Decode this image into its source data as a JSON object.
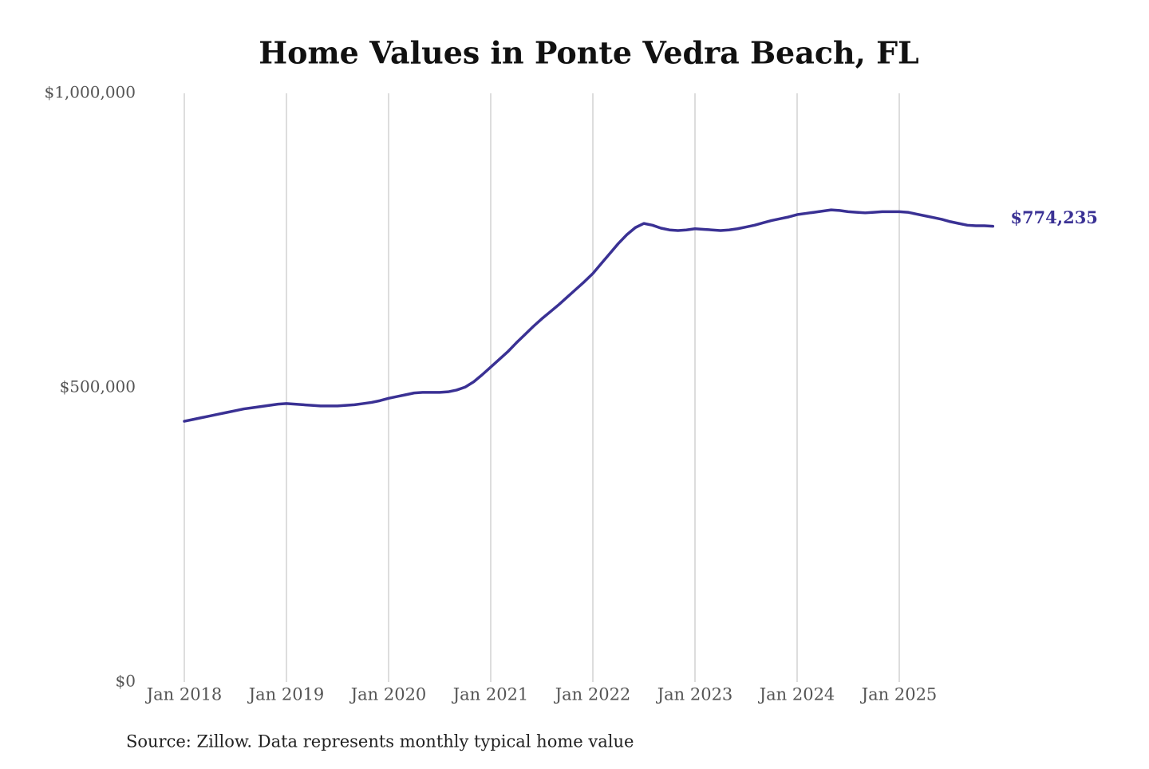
{
  "chart_data": {
    "type": "line",
    "title": "Home Values in Ponte Vedra Beach, FL",
    "source": "Source: Zillow. Data represents monthly typical home value",
    "x": [
      "2018-01",
      "2018-02",
      "2018-03",
      "2018-04",
      "2018-05",
      "2018-06",
      "2018-07",
      "2018-08",
      "2018-09",
      "2018-10",
      "2018-11",
      "2018-12",
      "2019-01",
      "2019-02",
      "2019-03",
      "2019-04",
      "2019-05",
      "2019-06",
      "2019-07",
      "2019-08",
      "2019-09",
      "2019-10",
      "2019-11",
      "2019-12",
      "2020-01",
      "2020-02",
      "2020-03",
      "2020-04",
      "2020-05",
      "2020-06",
      "2020-07",
      "2020-08",
      "2020-09",
      "2020-10",
      "2020-11",
      "2020-12",
      "2021-01",
      "2021-02",
      "2021-03",
      "2021-04",
      "2021-05",
      "2021-06",
      "2021-07",
      "2021-08",
      "2021-09",
      "2021-10",
      "2021-11",
      "2021-12",
      "2022-01",
      "2022-02",
      "2022-03",
      "2022-04",
      "2022-05",
      "2022-06",
      "2022-07",
      "2022-08",
      "2022-09",
      "2022-10",
      "2022-11",
      "2022-12",
      "2023-01",
      "2023-02",
      "2023-03",
      "2023-04",
      "2023-05",
      "2023-06",
      "2023-07",
      "2023-08",
      "2023-09",
      "2023-10",
      "2023-11",
      "2023-12",
      "2024-01",
      "2024-02",
      "2024-03",
      "2024-04",
      "2024-05",
      "2024-06",
      "2024-07",
      "2024-08",
      "2024-09",
      "2024-10",
      "2024-11",
      "2024-12",
      "2025-01",
      "2025-02",
      "2025-03",
      "2025-04",
      "2025-05",
      "2025-06",
      "2025-07",
      "2025-08",
      "2025-09",
      "2025-10",
      "2025-11",
      "2025-12"
    ],
    "series": [
      {
        "name": "Typical home value",
        "color": "#3a3194",
        "values": [
          443000,
          446000,
          449000,
          452000,
          455000,
          458000,
          461000,
          464000,
          466000,
          468000,
          470000,
          472000,
          473000,
          472000,
          471000,
          470000,
          469000,
          469000,
          469000,
          470000,
          471000,
          473000,
          475000,
          478000,
          482000,
          485000,
          488000,
          491000,
          492000,
          492000,
          492000,
          493000,
          496000,
          501000,
          510000,
          522000,
          535000,
          548000,
          561000,
          576000,
          590000,
          604000,
          617000,
          629000,
          641000,
          654000,
          667000,
          680000,
          694000,
          711000,
          728000,
          745000,
          760000,
          772000,
          779000,
          776000,
          771000,
          768000,
          767000,
          768000,
          770000,
          769000,
          768000,
          767000,
          768000,
          770000,
          773000,
          776000,
          780000,
          784000,
          787000,
          790000,
          794000,
          796000,
          798000,
          800000,
          802000,
          801000,
          799000,
          798000,
          797000,
          798000,
          799000,
          799000,
          799000,
          798000,
          795000,
          792000,
          789000,
          786000,
          782000,
          779000,
          776000,
          775000,
          775000,
          774235
        ],
        "value_labels": [
          null,
          null,
          null,
          null,
          null,
          null,
          null,
          null,
          null,
          null,
          null,
          null,
          null,
          null,
          null,
          null,
          null,
          null,
          null,
          null,
          null,
          null,
          null,
          null,
          null,
          null,
          null,
          null,
          null,
          null,
          null,
          null,
          null,
          null,
          null,
          null,
          null,
          null,
          null,
          null,
          null,
          null,
          null,
          null,
          null,
          null,
          null,
          null,
          null,
          null,
          null,
          null,
          null,
          null,
          null,
          null,
          null,
          null,
          null,
          null,
          null,
          null,
          null,
          null,
          null,
          null,
          null,
          null,
          null,
          null,
          null,
          null,
          null,
          null,
          null,
          null,
          null,
          null,
          null,
          null,
          null,
          null,
          null,
          null,
          null,
          null,
          null,
          null,
          null,
          null,
          null,
          null,
          null,
          null,
          null,
          "$774,235"
        ]
      }
    ],
    "xticks": [
      {
        "value": "2018-01",
        "label": "Jan 2018"
      },
      {
        "value": "2019-01",
        "label": "Jan 2019"
      },
      {
        "value": "2020-01",
        "label": "Jan 2020"
      },
      {
        "value": "2021-01",
        "label": "Jan 2021"
      },
      {
        "value": "2022-01",
        "label": "Jan 2022"
      },
      {
        "value": "2023-01",
        "label": "Jan 2023"
      },
      {
        "value": "2024-01",
        "label": "Jan 2024"
      },
      {
        "value": "2025-01",
        "label": "Jan 2025"
      }
    ],
    "ylim": [
      0,
      1000000
    ],
    "yticks": [
      {
        "value": 0,
        "label": "$0"
      },
      {
        "value": 500000,
        "label": "$500,000"
      },
      {
        "value": 1000000,
        "label": "$1,000,000"
      }
    ],
    "grid": "x"
  }
}
